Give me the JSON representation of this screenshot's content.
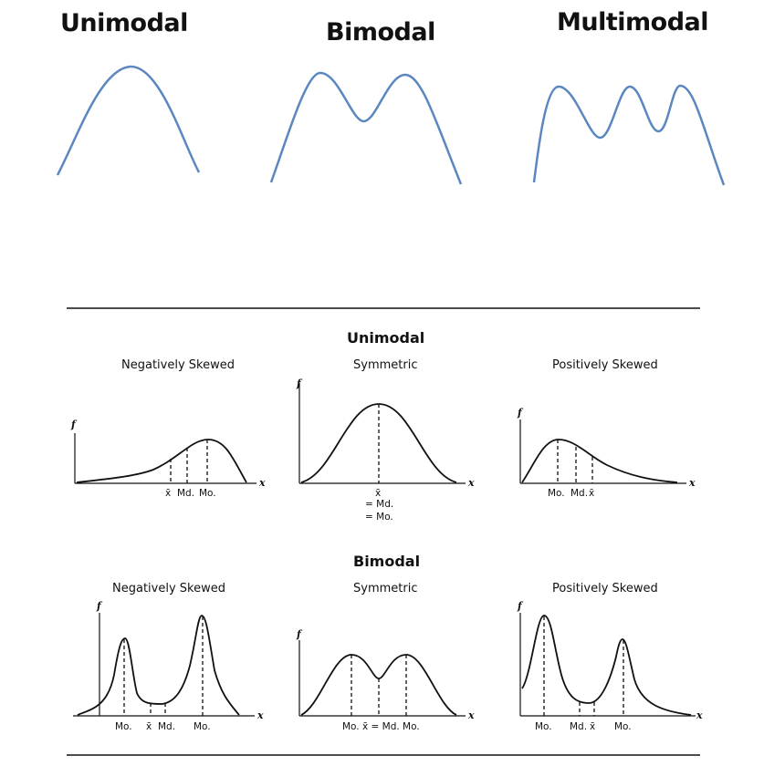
{
  "top": {
    "titles": [
      "Unimodal",
      "Bimodal",
      "Multimodal"
    ],
    "curve_color": "#5b87c0"
  },
  "diagram": {
    "sections": [
      {
        "title": "Unimodal",
        "panels": [
          {
            "title": "Negatively Skewed",
            "labels": [
              "x̄",
              "Md.",
              "Mo."
            ]
          },
          {
            "title": "Symmetric",
            "labels": [
              "x̄",
              "= Md.",
              "= Mo."
            ]
          },
          {
            "title": "Positively Skewed",
            "labels": [
              "Mo.",
              "Md.",
              "x̄"
            ]
          }
        ]
      },
      {
        "title": "Bimodal",
        "panels": [
          {
            "title": "Negatively Skewed",
            "labels": [
              "Mo.",
              "x̄",
              "Md.",
              "Mo."
            ]
          },
          {
            "title": "Symmetric",
            "labels": [
              "Mo. x̄ = Md. Mo."
            ]
          },
          {
            "title": "Positively Skewed",
            "labels": [
              "Mo.",
              "Md.",
              "x̄",
              "Mo."
            ]
          }
        ]
      }
    ],
    "axis_labels": {
      "y": "f",
      "x": "x"
    }
  }
}
